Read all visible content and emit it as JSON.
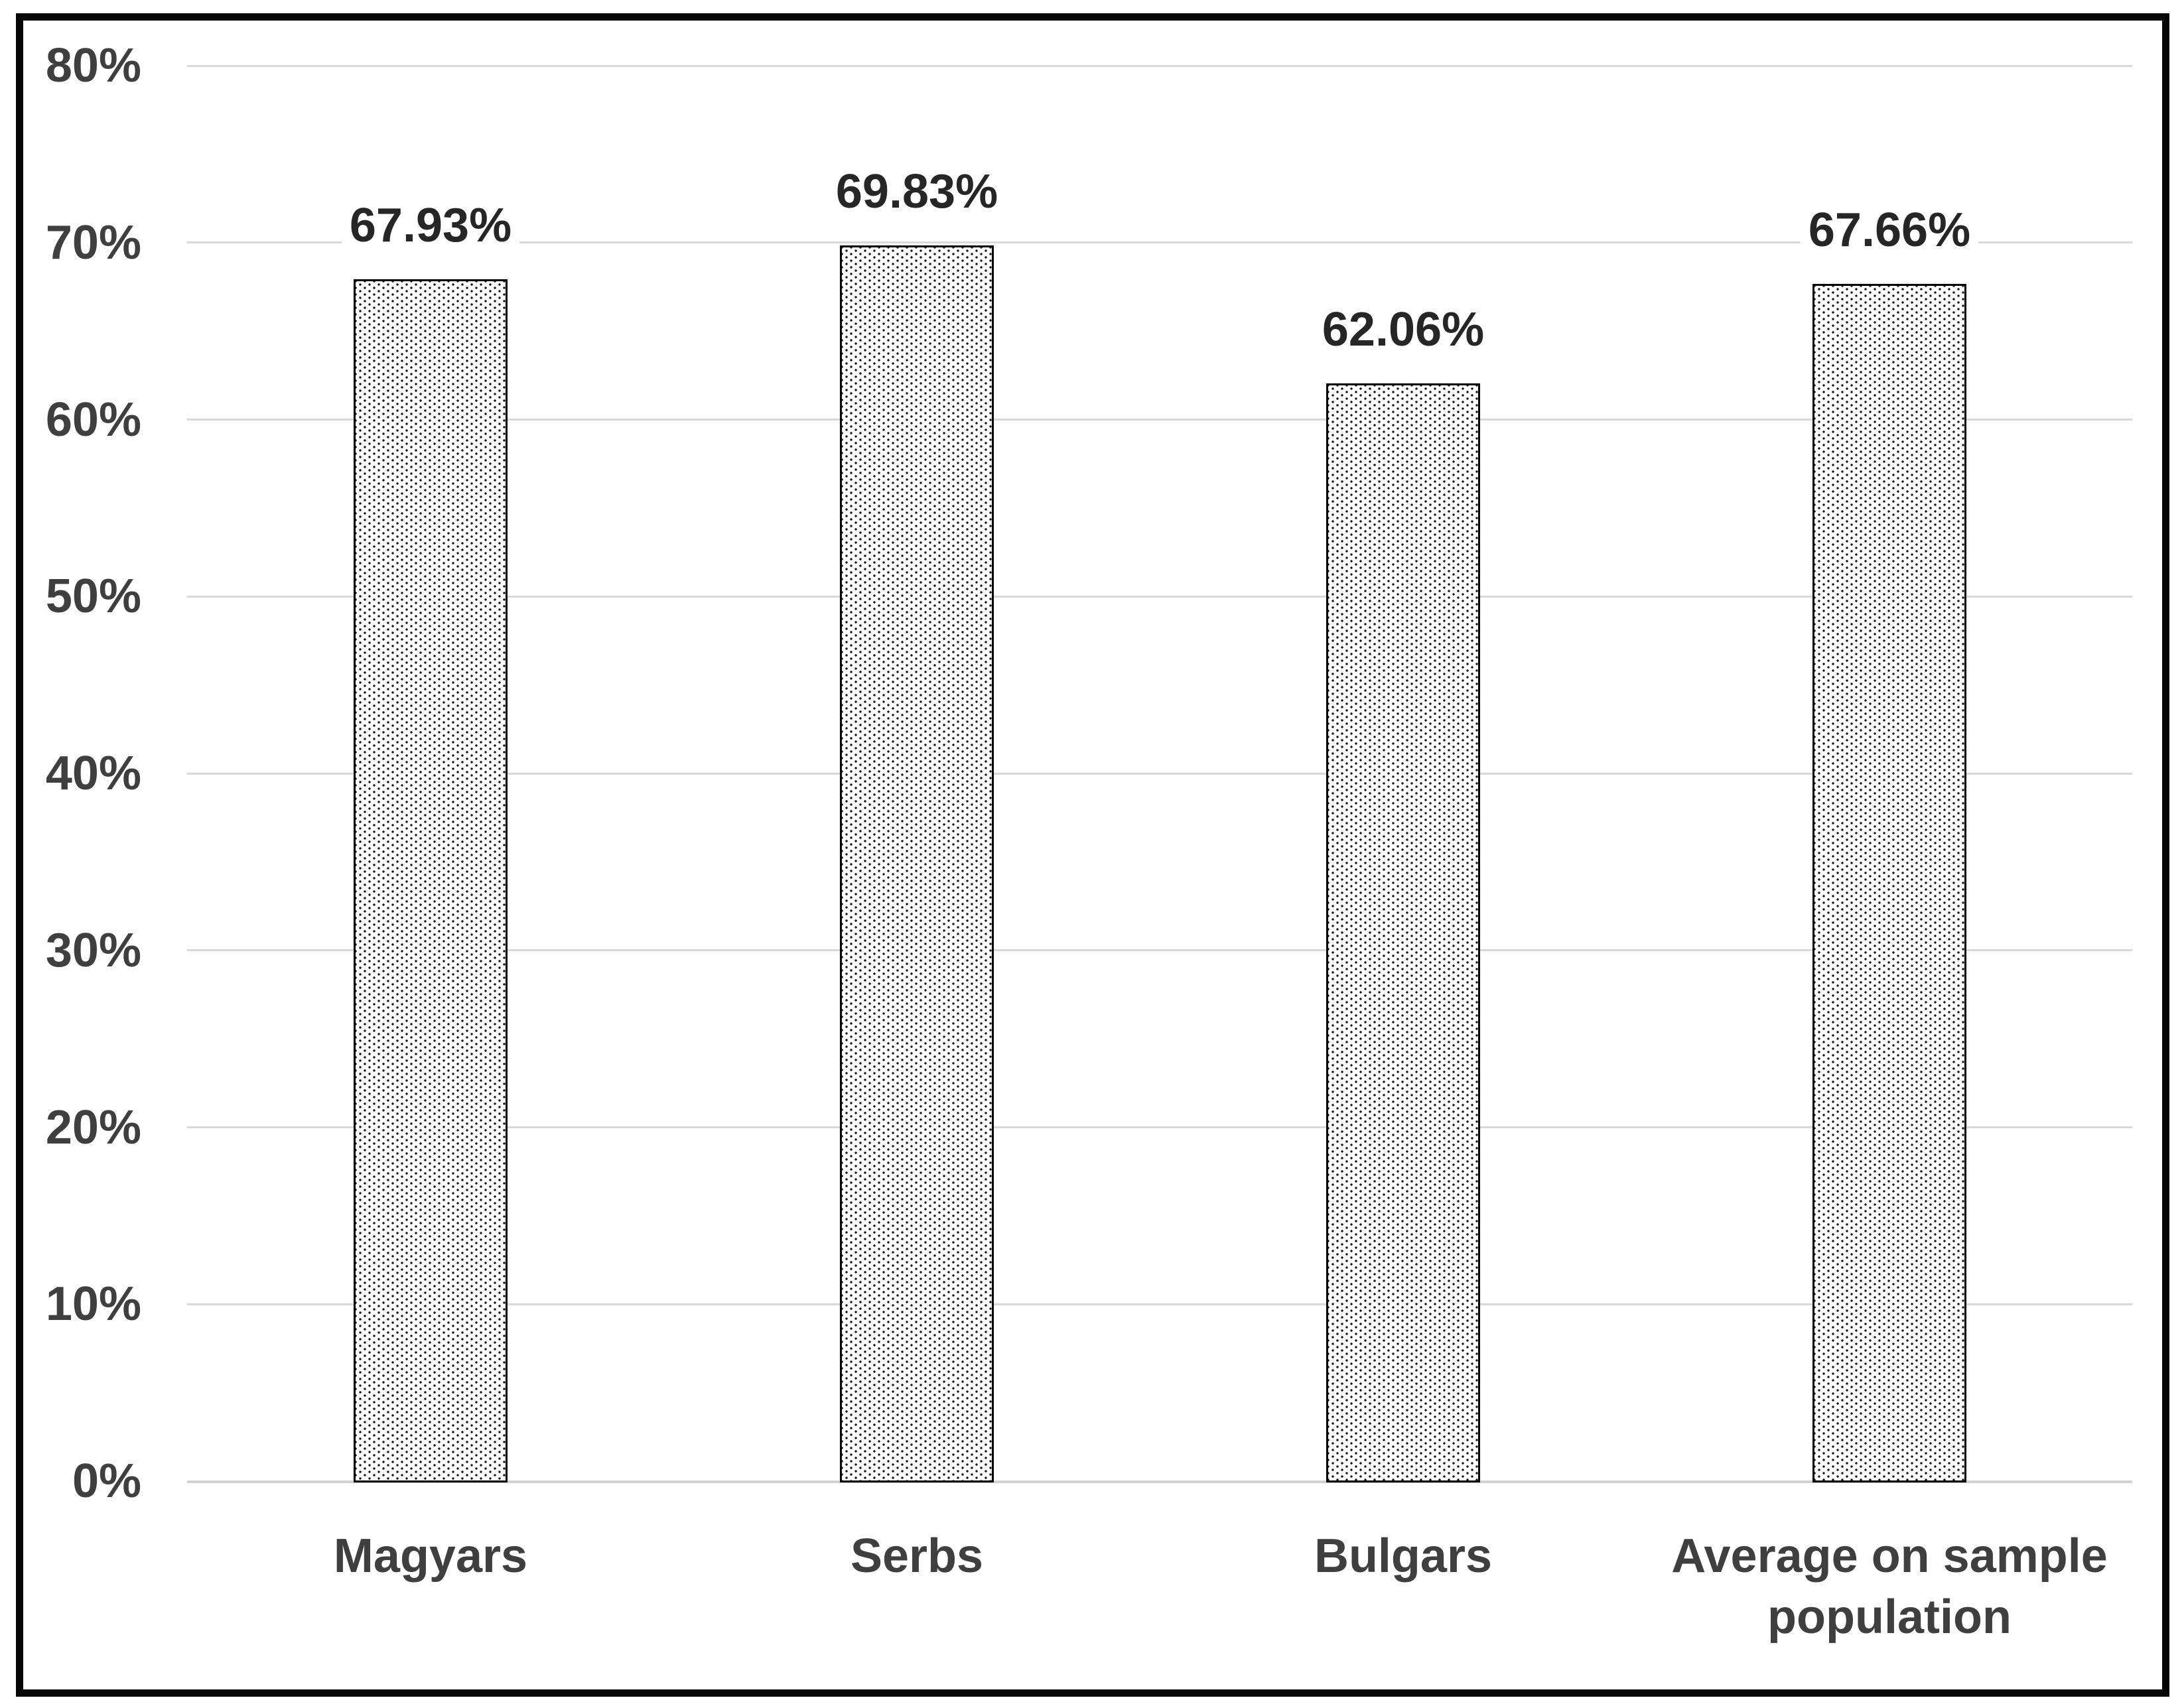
{
  "chart_data": {
    "type": "bar",
    "title": "",
    "xlabel": "",
    "ylabel": "",
    "categories": [
      "Magyars",
      "Serbs",
      "Bulgars",
      "Average on sample population"
    ],
    "values": [
      67.93,
      69.83,
      62.06,
      67.66
    ],
    "data_labels": [
      "67.93%",
      "69.83%",
      "62.06%",
      "67.66%"
    ],
    "ylim": [
      0,
      80
    ],
    "ytick_step": 10,
    "ytick_labels": [
      "0%",
      "10%",
      "20%",
      "30%",
      "40%",
      "50%",
      "60%",
      "70%",
      "80%"
    ],
    "grid": true,
    "legend_position": "none",
    "bar_pattern": "dotted-stipple"
  },
  "colors": {
    "background": "#ffffff",
    "frame_border": "#060606",
    "gridline": "#d9d9d9",
    "zero_line": "#d2d2d2",
    "bar_fill_base": "#fdfdfd",
    "bar_dot": "#141414",
    "bar_border": "#000000",
    "tick_text": "#3f3f3f",
    "category_text": "#3f3f3f",
    "data_label_text": "#262626"
  }
}
